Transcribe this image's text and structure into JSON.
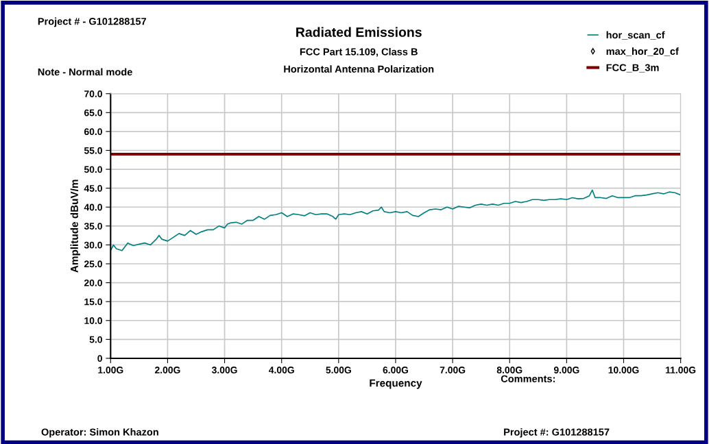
{
  "chart_data": {
    "type": "line",
    "title": "Radiated Emissions",
    "subtitle": "FCC Part 15.109, Class B\nHorizontal Antenna Polarization",
    "xlabel": "Frequency",
    "ylabel": "Amplitude dBuV/m",
    "xlim": [
      1,
      11
    ],
    "xticks": [
      {
        "value": 1,
        "label": "1.00G"
      },
      {
        "value": 2,
        "label": "2.00G"
      },
      {
        "value": 3,
        "label": "3.00G"
      },
      {
        "value": 4,
        "label": "4.00G"
      },
      {
        "value": 5,
        "label": "5.00G"
      },
      {
        "value": 6,
        "label": "6.00G"
      },
      {
        "value": 7,
        "label": "7.00G"
      },
      {
        "value": 8,
        "label": "8.00G"
      },
      {
        "value": 9,
        "label": "9.00G"
      },
      {
        "value": 10,
        "label": "10.00G"
      },
      {
        "value": 11,
        "label": "11.00G"
      }
    ],
    "ylim": [
      0,
      70
    ],
    "yticks": [
      0,
      {
        "value": 5,
        "label": "5.0"
      },
      {
        "value": 10,
        "label": "10.0"
      },
      {
        "value": 15,
        "label": "15.0"
      },
      {
        "value": 20,
        "label": "20.0"
      },
      {
        "value": 25,
        "label": "25.0"
      },
      {
        "value": 30,
        "label": "30.0"
      },
      {
        "value": 35,
        "label": "35.0"
      },
      {
        "value": 40,
        "label": "40.0"
      },
      {
        "value": 45,
        "label": "45.0"
      },
      {
        "value": 50,
        "label": "50.0"
      },
      {
        "value": 55,
        "label": "55.0"
      },
      {
        "value": 60,
        "label": "60.0"
      },
      {
        "value": 65,
        "label": "65.0"
      },
      {
        "value": 70,
        "label": "70.0"
      }
    ],
    "grid": true,
    "legend": "top right",
    "series": [
      {
        "name": "hor_scan_cf",
        "type": "line",
        "color": "#008080",
        "x": [
          1.0,
          1.05,
          1.1,
          1.2,
          1.3,
          1.4,
          1.5,
          1.6,
          1.7,
          1.8,
          1.85,
          1.9,
          2.0,
          2.1,
          2.2,
          2.3,
          2.4,
          2.5,
          2.6,
          2.7,
          2.8,
          2.9,
          3.0,
          3.05,
          3.1,
          3.2,
          3.3,
          3.4,
          3.5,
          3.6,
          3.7,
          3.8,
          3.9,
          4.0,
          4.1,
          4.2,
          4.3,
          4.4,
          4.5,
          4.6,
          4.7,
          4.8,
          4.9,
          4.95,
          5.0,
          5.1,
          5.2,
          5.3,
          5.4,
          5.5,
          5.6,
          5.7,
          5.75,
          5.8,
          5.9,
          6.0,
          6.1,
          6.2,
          6.3,
          6.4,
          6.5,
          6.6,
          6.7,
          6.8,
          6.9,
          7.0,
          7.1,
          7.2,
          7.3,
          7.4,
          7.5,
          7.6,
          7.7,
          7.8,
          7.9,
          8.0,
          8.1,
          8.2,
          8.3,
          8.4,
          8.5,
          8.6,
          8.7,
          8.8,
          8.9,
          9.0,
          9.1,
          9.2,
          9.3,
          9.4,
          9.45,
          9.5,
          9.6,
          9.7,
          9.8,
          9.9,
          10.0,
          10.1,
          10.2,
          10.3,
          10.4,
          10.5,
          10.6,
          10.7,
          10.8,
          10.9,
          11.0
        ],
        "values": [
          28.5,
          30,
          29,
          28.5,
          30.5,
          29.8,
          30.2,
          30.5,
          30,
          31.5,
          32.5,
          31.5,
          31,
          32,
          33,
          32.5,
          33.8,
          32.8,
          33.5,
          34,
          34,
          35,
          34.5,
          35.5,
          35.8,
          36,
          35.5,
          36.5,
          36.5,
          37.5,
          36.8,
          37.8,
          38,
          38.5,
          37.5,
          38.2,
          38,
          37.7,
          38.5,
          38,
          38.2,
          38.2,
          37.5,
          36.8,
          38,
          38.2,
          38,
          38.5,
          38.8,
          38.2,
          39,
          39.2,
          40,
          38.8,
          38.5,
          38.8,
          38.5,
          38.8,
          37.8,
          37.5,
          38.5,
          39.3,
          39.5,
          39.3,
          40,
          39.5,
          40.2,
          40,
          39.8,
          40.5,
          40.8,
          40.5,
          40.8,
          40.5,
          41,
          41,
          41.5,
          41.2,
          41.5,
          42,
          42,
          41.8,
          42,
          42,
          42.2,
          42,
          42.5,
          42.2,
          42.3,
          43,
          44.5,
          42.5,
          42.5,
          42.3,
          43,
          42.5,
          42.5,
          42.5,
          43,
          43,
          43.2,
          43.5,
          43.8,
          43.5,
          44,
          43.8,
          43.2
        ]
      },
      {
        "name": "max_hor_20_cf",
        "type": "scatter",
        "color": "#000000",
        "marker": "diamond"
      },
      {
        "name": "FCC_B_3m",
        "type": "line",
        "color": "#800000",
        "x": [
          1,
          11
        ],
        "values": [
          54,
          54
        ]
      }
    ],
    "annotations": [
      "Project # - G101288157",
      "Note - Normal mode",
      "Comments:",
      "Operator: Simon Khazon",
      "Project #: G101288157"
    ]
  }
}
